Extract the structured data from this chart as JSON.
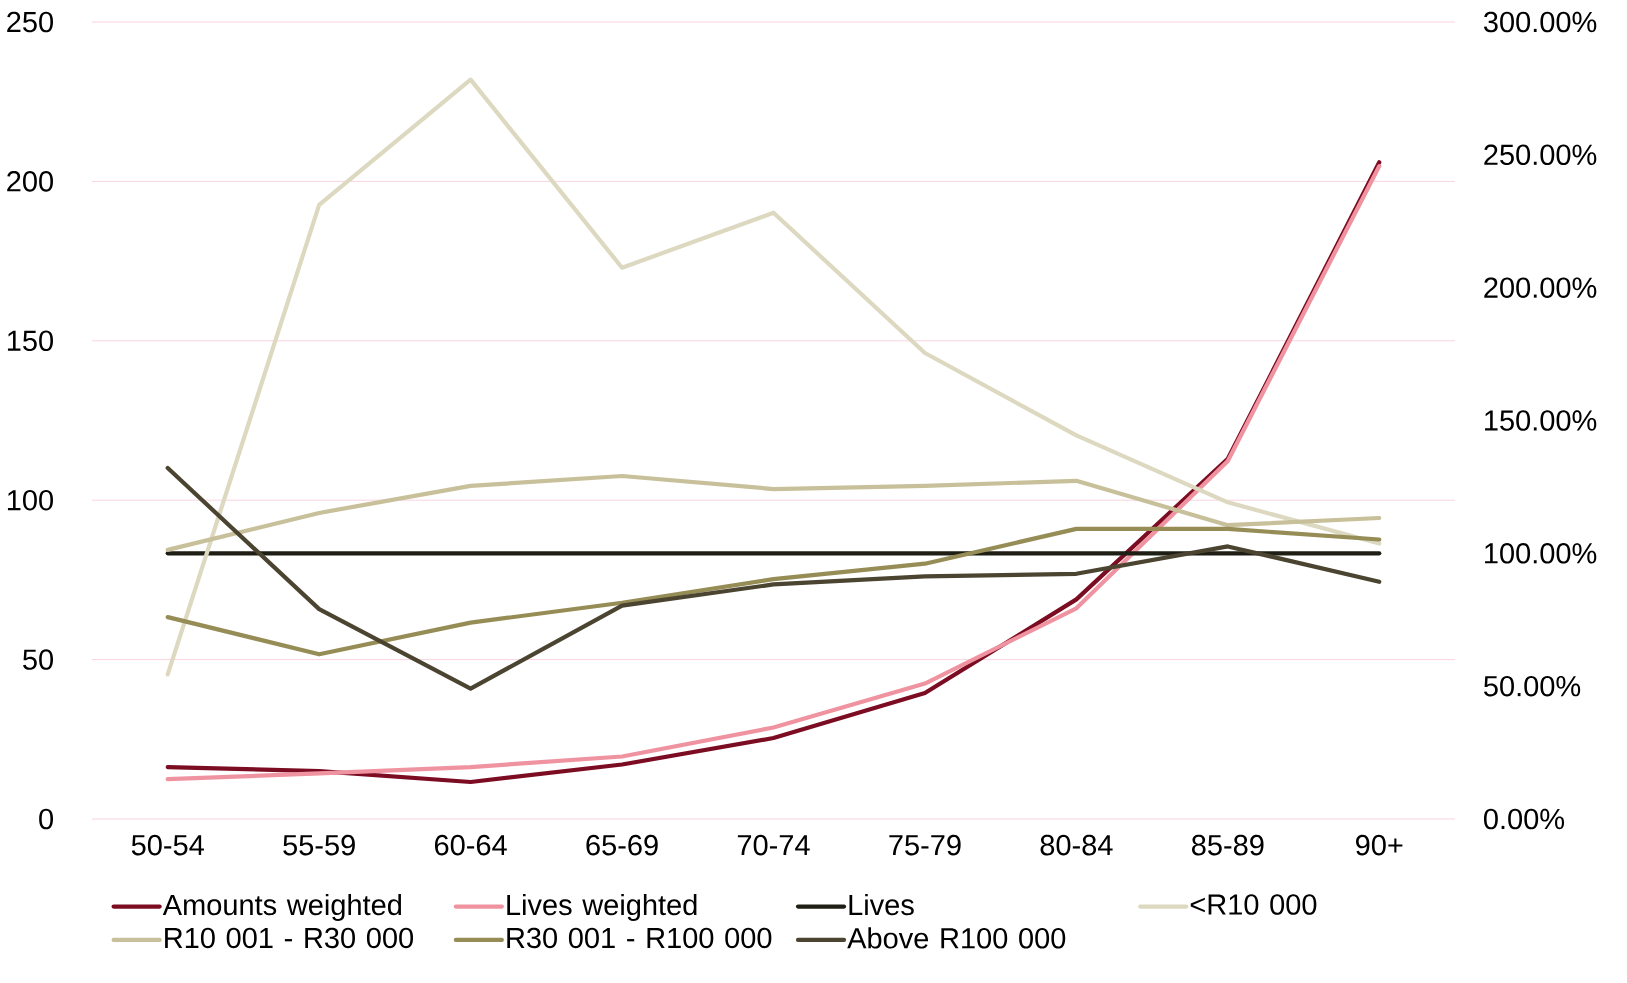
{
  "chart_data": {
    "type": "line",
    "categories": [
      "50-54",
      "55-59",
      "60-64",
      "65-69",
      "70-74",
      "75-79",
      "80-84",
      "85-89",
      "90+"
    ],
    "series": [
      {
        "name": "Amounts weighted",
        "color": "#7b0c22",
        "values": [
          16.3,
          15.0,
          11.6,
          17.1,
          25.4,
          39.5,
          68.9,
          113.0,
          206.0
        ]
      },
      {
        "name": "Lives weighted",
        "color": "#f093a0",
        "values": [
          12.5,
          14.3,
          16.3,
          19.6,
          28.7,
          42.5,
          66.1,
          112.3,
          204.8
        ]
      },
      {
        "name": "Lives",
        "color": "#1e1e14",
        "axis": "y2",
        "values": [
          100,
          100,
          100,
          100,
          100,
          100,
          100,
          100,
          100
        ]
      },
      {
        "name": "<R10 000",
        "color": "#ddd8c0",
        "axis": "y2",
        "values": [
          54.4,
          231.2,
          278.3,
          207.5,
          228.2,
          175.4,
          144.4,
          119.2,
          103.7
        ]
      },
      {
        "name": "R10 001 - R30 000",
        "color": "#c8c09a",
        "axis": "y2",
        "values": [
          101.3,
          115.2,
          125.4,
          129.1,
          124.2,
          125.4,
          127.3,
          110.6,
          113.3
        ]
      },
      {
        "name": "R30 001 - R100 000",
        "color": "#968c55",
        "axis": "y2",
        "values": [
          76.0,
          62.0,
          73.9,
          81.4,
          90.3,
          96.1,
          109.2,
          109.2,
          105.2
        ]
      },
      {
        "name": "Above R100 000",
        "color": "#4a4430",
        "axis": "y2",
        "values": [
          132.1,
          79.0,
          49.1,
          80.3,
          88.3,
          91.3,
          92.3,
          102.6,
          89.3
        ]
      }
    ],
    "ylim": [
      0,
      250
    ],
    "yticks": [
      0,
      50,
      100,
      150,
      200,
      250
    ],
    "y2lim": [
      0,
      300
    ],
    "y2ticks": [
      {
        "value": 0,
        "label": "0.00%"
      },
      {
        "value": 50,
        "label": "50.00%"
      },
      {
        "value": 100,
        "label": "100.00%"
      },
      {
        "value": 150,
        "label": "150.00%"
      },
      {
        "value": 200,
        "label": "200.00%"
      },
      {
        "value": 250,
        "label": "250.00%"
      },
      {
        "value": 300,
        "label": "300.00%"
      }
    ],
    "grid": "y",
    "legend": "bottom",
    "marker": "none"
  }
}
